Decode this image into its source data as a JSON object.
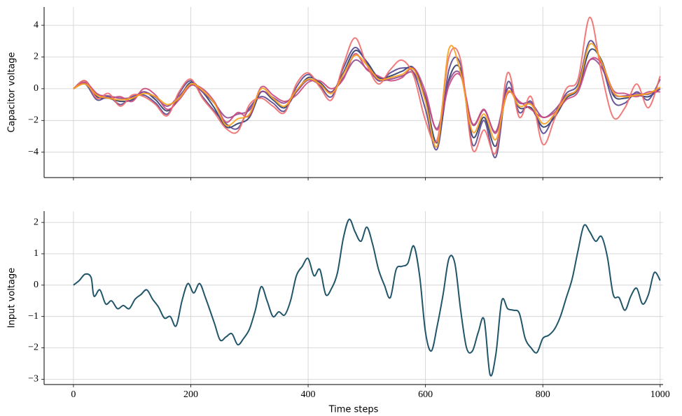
{
  "chart_data": [
    {
      "type": "line",
      "ylabel": "Capacitor voltage",
      "grid": true,
      "show_xtick_labels": false,
      "xlim": [
        -50,
        1005
      ],
      "ylim": [
        -5.6,
        5.15
      ],
      "xticks": [
        0,
        200,
        400,
        600,
        800,
        1000
      ],
      "yticks": [
        {
          "value": -4,
          "label": "−4"
        },
        {
          "value": -2,
          "label": "−2"
        },
        0,
        2,
        4
      ],
      "x": [
        0,
        20,
        40,
        60,
        80,
        100,
        120,
        140,
        160,
        180,
        200,
        220,
        240,
        260,
        280,
        300,
        320,
        340,
        360,
        380,
        400,
        420,
        440,
        460,
        480,
        500,
        520,
        540,
        560,
        580,
        600,
        620,
        640,
        660,
        680,
        700,
        720,
        740,
        760,
        780,
        800,
        820,
        840,
        860,
        880,
        900,
        920,
        940,
        960,
        980,
        1000
      ],
      "series": [
        {
          "color": "#2b3a67",
          "values": [
            0,
            0.5,
            -0.5,
            -0.6,
            -0.8,
            -0.7,
            -0.2,
            -0.7,
            -1.4,
            -0.6,
            0.4,
            -0.2,
            -1.2,
            -2.4,
            -2.2,
            -1.8,
            -0.2,
            -0.7,
            -1.2,
            -0.2,
            0.7,
            0.4,
            -0.2,
            1.0,
            2.4,
            1.7,
            0.7,
            0.8,
            1.1,
            1.3,
            -0.6,
            -3.4,
            0.6,
            1.2,
            -3.0,
            -1.8,
            -3.6,
            0.0,
            -1.2,
            -1.2,
            -2.4,
            -1.8,
            -0.6,
            0.0,
            2.4,
            1.8,
            -0.4,
            -0.6,
            -0.4,
            -0.5,
            0
          ]
        },
        {
          "color": "#56468f",
          "values": [
            0,
            0.3,
            -0.7,
            -0.5,
            -1.0,
            -0.5,
            -0.4,
            -0.9,
            -1.6,
            -0.3,
            0.5,
            -0.5,
            -1.4,
            -2.2,
            -2.5,
            -1.2,
            -0.5,
            -0.9,
            -1.4,
            0.1,
            0.9,
            0.2,
            -0.5,
            1.3,
            2.6,
            1.6,
            0.5,
            1.0,
            1.3,
            1.0,
            -1.3,
            -3.8,
            1.2,
            1.5,
            -3.5,
            -2.0,
            -4.3,
            0.4,
            -1.5,
            -0.8,
            -2.8,
            -1.6,
            -0.3,
            0.3,
            3.0,
            1.6,
            -0.8,
            -0.9,
            -0.2,
            -0.7,
            0.6
          ]
        },
        {
          "color": "#8f4a90",
          "values": [
            0,
            0.35,
            -0.35,
            -0.45,
            -0.6,
            -0.55,
            -0.2,
            -0.55,
            -1.1,
            -0.45,
            0.25,
            -0.2,
            -0.9,
            -1.8,
            -1.6,
            -1.35,
            -0.2,
            -0.55,
            -0.9,
            -0.2,
            0.55,
            0.25,
            -0.2,
            0.7,
            1.8,
            1.25,
            0.55,
            0.6,
            0.8,
            1.0,
            -0.45,
            -2.5,
            0.45,
            0.9,
            -2.25,
            -1.35,
            -2.7,
            0.0,
            -0.9,
            -0.9,
            -1.8,
            -1.35,
            -0.45,
            0.0,
            1.8,
            1.35,
            -0.3,
            -0.45,
            -0.3,
            -0.35,
            0
          ]
        },
        {
          "color": "#c9487e",
          "values": [
            0,
            0.4,
            -0.3,
            -0.6,
            -0.5,
            -0.8,
            0.0,
            -0.4,
            -1.3,
            -0.7,
            0.2,
            0.0,
            -0.8,
            -2.1,
            -1.5,
            -1.7,
            0.1,
            -0.4,
            -0.8,
            -0.4,
            0.4,
            0.5,
            0.0,
            0.6,
            2.2,
            1.2,
            0.8,
            0.5,
            0.7,
            1.3,
            -0.2,
            -2.6,
            0.2,
            0.8,
            -2.2,
            -1.3,
            -2.8,
            -0.3,
            -0.8,
            -1.3,
            -1.8,
            -1.5,
            -0.7,
            -0.2,
            1.8,
            1.6,
            -0.1,
            -0.3,
            -0.5,
            -0.2,
            -0.2
          ]
        },
        {
          "color": "#f26b6b",
          "values": [
            0,
            0.5,
            -0.6,
            -0.3,
            -1.1,
            -0.4,
            -0.5,
            -1.0,
            -1.7,
            -0.2,
            0.6,
            -0.6,
            -1.5,
            -2.5,
            -2.7,
            -1.0,
            -0.6,
            -1.1,
            -1.5,
            0.3,
            1.0,
            0.1,
            -0.7,
            1.5,
            3.2,
            1.5,
            0.3,
            1.2,
            1.8,
            0.8,
            -2.0,
            -3.2,
            2.0,
            1.8,
            -3.8,
            -2.6,
            -4.0,
            1.0,
            -1.8,
            -0.5,
            -3.5,
            -1.9,
            0.0,
            0.6,
            4.5,
            1.0,
            -1.8,
            -1.2,
            0.3,
            -1.2,
            0.8
          ]
        },
        {
          "color": "#f7a21b",
          "values": [
            0,
            0.3,
            -0.4,
            -0.6,
            -0.7,
            -0.6,
            -0.3,
            -0.5,
            -1.0,
            -0.6,
            0.3,
            -0.1,
            -0.9,
            -2.3,
            -1.9,
            -1.6,
            0.0,
            -0.6,
            -1.1,
            -0.1,
            0.6,
            0.3,
            -0.3,
            0.9,
            2.1,
            1.5,
            0.6,
            0.7,
            0.9,
            1.2,
            -0.8,
            -3.6,
            2.5,
            1.0,
            -2.7,
            -1.6,
            -3.2,
            -0.2,
            -1.1,
            -1.0,
            -2.2,
            -1.6,
            -0.5,
            0.1,
            2.8,
            1.7,
            -0.2,
            -0.5,
            -0.4,
            -0.3,
            0.1
          ]
        }
      ]
    },
    {
      "type": "line",
      "ylabel": "Input voltage",
      "xlabel": "Time steps",
      "grid": true,
      "show_xtick_labels": true,
      "xlim": [
        -50,
        1005
      ],
      "ylim": [
        -3.17,
        2.36
      ],
      "xticks": [
        0,
        200,
        400,
        600,
        800,
        1000
      ],
      "yticks": [
        {
          "value": -3,
          "label": "−3"
        },
        {
          "value": -2,
          "label": "−2"
        },
        {
          "value": -1,
          "label": "−1"
        },
        0,
        1,
        2
      ],
      "x": [
        0,
        10,
        20,
        30,
        35,
        45,
        55,
        65,
        75,
        85,
        95,
        105,
        115,
        125,
        135,
        145,
        155,
        165,
        175,
        185,
        195,
        205,
        215,
        225,
        240,
        250,
        260,
        270,
        280,
        290,
        300,
        310,
        320,
        330,
        340,
        350,
        360,
        370,
        380,
        390,
        400,
        410,
        420,
        430,
        440,
        450,
        460,
        470,
        480,
        490,
        500,
        510,
        520,
        530,
        540,
        550,
        560,
        570,
        580,
        590,
        600,
        610,
        620,
        630,
        640,
        650,
        660,
        670,
        680,
        690,
        700,
        710,
        720,
        730,
        740,
        750,
        760,
        770,
        780,
        790,
        800,
        810,
        820,
        830,
        840,
        850,
        860,
        870,
        880,
        890,
        900,
        910,
        920,
        930,
        940,
        950,
        960,
        970,
        980,
        990,
        1000
      ],
      "series": [
        {
          "color": "#08425a",
          "values": [
            0,
            0.15,
            0.35,
            0.25,
            -0.35,
            -0.15,
            -0.6,
            -0.5,
            -0.75,
            -0.65,
            -0.75,
            -0.45,
            -0.3,
            -0.15,
            -0.45,
            -0.7,
            -1.05,
            -1.0,
            -1.3,
            -0.5,
            0.05,
            -0.25,
            0.05,
            -0.4,
            -1.2,
            -1.75,
            -1.65,
            -1.55,
            -1.9,
            -1.7,
            -1.4,
            -0.8,
            -0.05,
            -0.5,
            -1.0,
            -0.85,
            -0.95,
            -0.5,
            0.3,
            0.6,
            0.85,
            0.3,
            0.5,
            -0.3,
            -0.1,
            0.4,
            1.5,
            2.1,
            1.7,
            1.4,
            1.85,
            1.3,
            0.5,
            0.0,
            -0.4,
            0.5,
            0.6,
            0.7,
            1.25,
            0.3,
            -1.5,
            -2.1,
            -1.3,
            -0.3,
            0.85,
            0.7,
            -0.8,
            -2.0,
            -2.1,
            -1.5,
            -1.1,
            -2.85,
            -2.2,
            -0.5,
            -0.75,
            -0.8,
            -0.9,
            -1.7,
            -2.0,
            -2.15,
            -1.7,
            -1.6,
            -1.4,
            -1.0,
            -0.4,
            0.2,
            1.1,
            1.9,
            1.7,
            1.4,
            1.55,
            0.9,
            -0.3,
            -0.4,
            -0.8,
            -0.35,
            -0.1,
            -0.6,
            -0.3,
            0.4,
            0.15
          ]
        }
      ]
    }
  ]
}
